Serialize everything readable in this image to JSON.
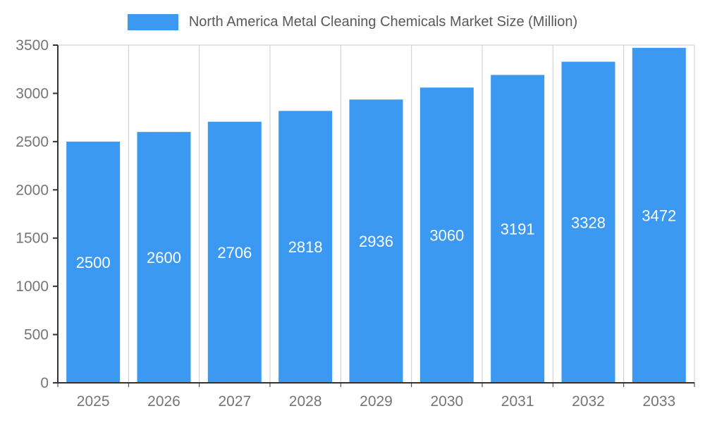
{
  "chart_data": {
    "type": "bar",
    "title": "North America Metal Cleaning Chemicals Market Size (Million)",
    "categories": [
      "2025",
      "2026",
      "2027",
      "2028",
      "2029",
      "2030",
      "2031",
      "2032",
      "2033"
    ],
    "values": [
      2500,
      2600,
      2706,
      2818,
      2936,
      3060,
      3191,
      3328,
      3472
    ],
    "xlabel": "",
    "ylabel": "",
    "ylim": [
      0,
      3500
    ],
    "ytick_step": 500,
    "ytick_labels": [
      "0",
      "500",
      "1000",
      "1500",
      "2000",
      "2500",
      "3000",
      "3500"
    ],
    "legend_position": "top",
    "grid": "vertical-category-lines-and-top-line",
    "bar_color": "#3B99F1",
    "bar_value_label_color": "#ffffff",
    "axis_text_color": "#757575",
    "title_color": "#595959",
    "grid_color": "#cccccc",
    "axis_line_color": "#333333"
  }
}
